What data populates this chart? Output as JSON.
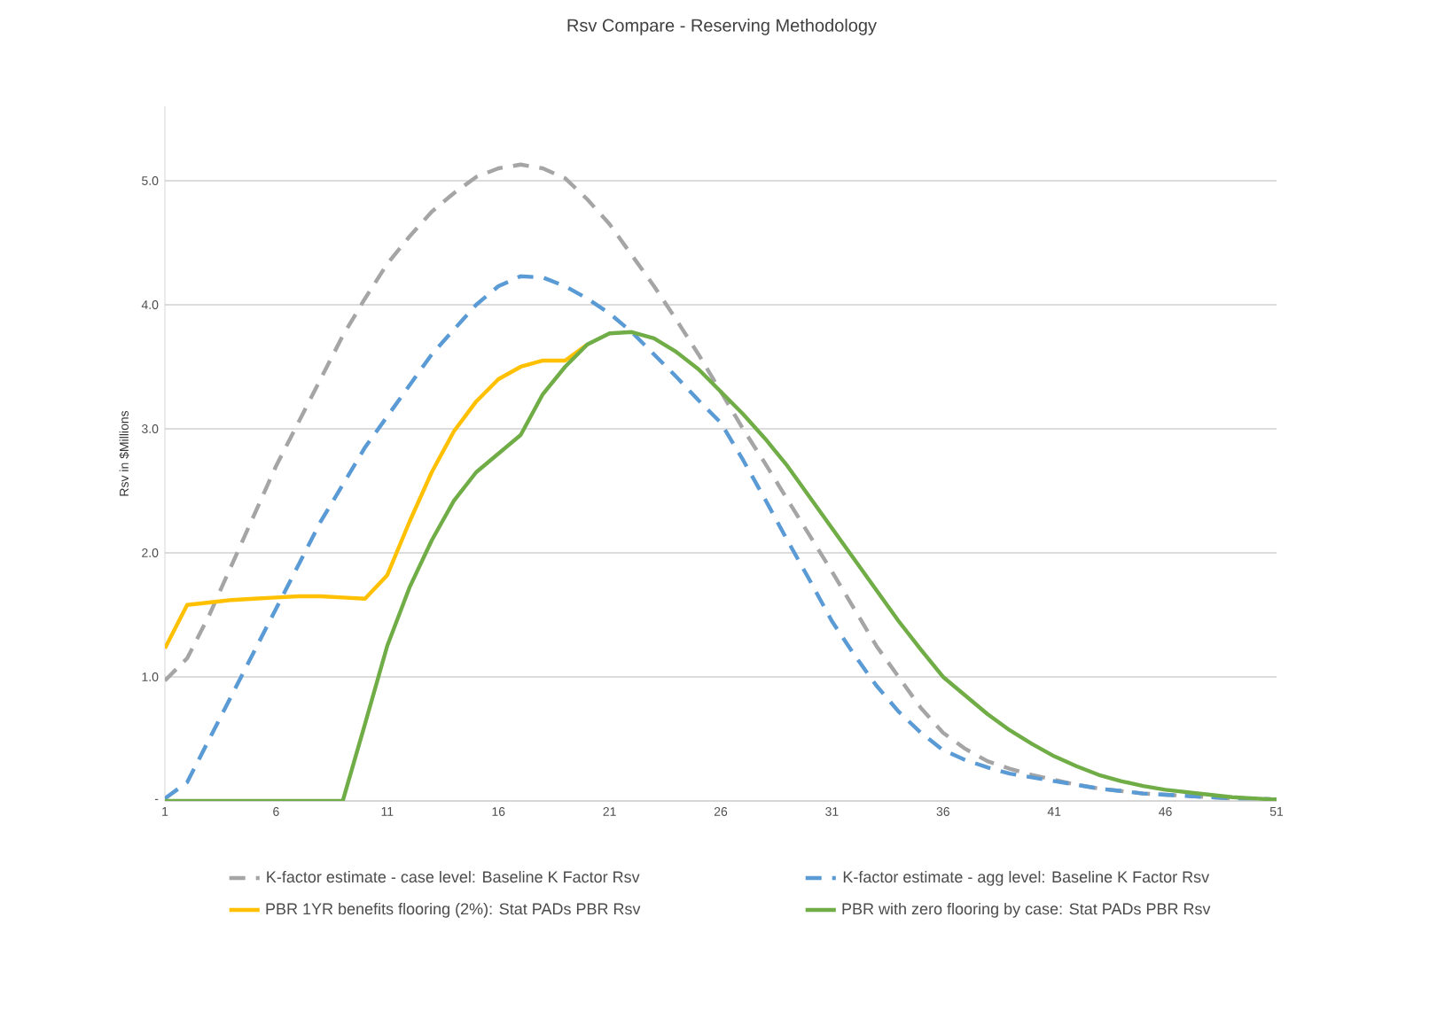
{
  "chart_data": {
    "type": "line",
    "title": "Rsv Compare - Reserving Methodology",
    "ylabel": "Rsv in $Millions",
    "x": [
      1,
      2,
      3,
      4,
      5,
      6,
      7,
      8,
      9,
      10,
      11,
      12,
      13,
      14,
      15,
      16,
      17,
      18,
      19,
      20,
      21,
      22,
      23,
      24,
      25,
      26,
      27,
      28,
      29,
      30,
      31,
      32,
      33,
      34,
      35,
      36,
      37,
      38,
      39,
      40,
      41,
      42,
      43,
      44,
      45,
      46,
      47,
      48,
      49,
      50,
      51
    ],
    "xlim": [
      1,
      51
    ],
    "xticks": [
      1,
      6,
      11,
      16,
      21,
      26,
      31,
      36,
      41,
      46,
      51
    ],
    "ylim": [
      0,
      5.6
    ],
    "yticks": [
      {
        "value": 0,
        "label": "-"
      },
      {
        "value": 1,
        "label": "1.0"
      },
      {
        "value": 2,
        "label": "2.0"
      },
      {
        "value": 3,
        "label": "3.0"
      },
      {
        "value": 4,
        "label": "4.0"
      },
      {
        "value": 5,
        "label": "5.0"
      }
    ],
    "grid": "y",
    "legend": "bottom",
    "marker": "none",
    "series": [
      {
        "name": "K-factor estimate - case level:   Baseline K Factor Rsv",
        "color": "#a5a5a5",
        "line_style": "dashed",
        "values": [
          0.97,
          1.15,
          1.5,
          1.9,
          2.3,
          2.7,
          3.05,
          3.4,
          3.75,
          4.05,
          4.33,
          4.55,
          4.75,
          4.9,
          5.03,
          5.1,
          5.13,
          5.1,
          5.02,
          4.85,
          4.65,
          4.4,
          4.15,
          3.88,
          3.6,
          3.3,
          3.0,
          2.72,
          2.43,
          2.14,
          1.85,
          1.55,
          1.25,
          1.0,
          0.75,
          0.55,
          0.42,
          0.32,
          0.26,
          0.21,
          0.17,
          0.13,
          0.1,
          0.08,
          0.06,
          0.05,
          0.04,
          0.03,
          0.02,
          0.02,
          0.01
        ]
      },
      {
        "name": "K-factor estimate - agg level:   Baseline K Factor Rsv",
        "color": "#5b9bd5",
        "line_style": "dashed",
        "values": [
          0.02,
          0.15,
          0.5,
          0.85,
          1.2,
          1.55,
          1.9,
          2.25,
          2.55,
          2.85,
          3.1,
          3.35,
          3.6,
          3.8,
          4.0,
          4.15,
          4.23,
          4.22,
          4.15,
          4.05,
          3.93,
          3.78,
          3.6,
          3.42,
          3.23,
          3.05,
          2.75,
          2.43,
          2.1,
          1.78,
          1.45,
          1.18,
          0.93,
          0.72,
          0.55,
          0.41,
          0.33,
          0.27,
          0.22,
          0.19,
          0.16,
          0.13,
          0.1,
          0.08,
          0.06,
          0.05,
          0.04,
          0.03,
          0.02,
          0.02,
          0.01
        ]
      },
      {
        "name": "PBR 1YR benefits flooring (2%):   Stat PADs PBR Rsv",
        "color": "#ffc000",
        "line_style": "solid",
        "values": [
          1.23,
          1.58,
          1.6,
          1.62,
          1.63,
          1.64,
          1.65,
          1.65,
          1.64,
          1.63,
          1.82,
          2.25,
          2.65,
          2.98,
          3.22,
          3.4,
          3.5,
          3.55,
          3.55,
          3.68,
          null,
          null,
          null,
          null,
          null,
          null,
          null,
          null,
          null,
          null,
          null,
          null,
          null,
          null,
          null,
          null,
          null,
          null,
          null,
          null,
          null,
          null,
          null,
          null,
          null,
          null,
          null,
          null,
          null,
          null,
          null
        ]
      },
      {
        "name": "PBR with zero flooring by case:   Stat PADs PBR Rsv",
        "color": "#70ad47",
        "line_style": "solid",
        "values": [
          0,
          0,
          0,
          0,
          0,
          0,
          0,
          0,
          0,
          0.62,
          1.25,
          1.72,
          2.1,
          2.42,
          2.65,
          2.8,
          2.95,
          3.28,
          3.5,
          3.68,
          3.77,
          3.78,
          3.73,
          3.62,
          3.48,
          3.3,
          3.12,
          2.92,
          2.7,
          2.45,
          2.2,
          1.95,
          1.7,
          1.45,
          1.22,
          1.0,
          0.85,
          0.7,
          0.57,
          0.46,
          0.36,
          0.28,
          0.21,
          0.16,
          0.12,
          0.09,
          0.07,
          0.05,
          0.03,
          0.02,
          0.01
        ]
      }
    ]
  }
}
